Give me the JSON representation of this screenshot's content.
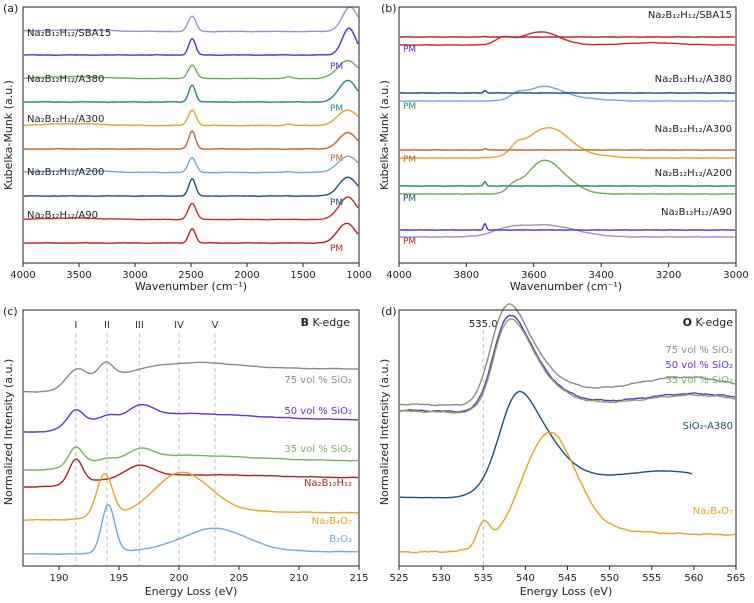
{
  "colors": {
    "SBA15": "#9c8fd6",
    "SBA15_PM": "#5b2bd6",
    "A380": "#6fae52",
    "A380_PM": "#1f8a7a",
    "A300": "#e6a41a",
    "A300_PM": "#c9622a",
    "A200": "#6fa8e0",
    "A200_PM": "#1a4e7e",
    "A90": "#d42626",
    "A90_PM": "#c41a1a",
    "gray": "#8a8a8a",
    "purple": "#6a2fd4",
    "green": "#79b15a",
    "darkred": "#b51e1e",
    "orange": "#e6a41a",
    "lightblue": "#6fa8e0",
    "navy": "#1a4e7e"
  },
  "chart_data": [
    {
      "panel": "(a)",
      "type": "line",
      "xlabel": "Wavenumber (cm⁻¹)",
      "ylabel": "Kubelka-Munk (a.u.)",
      "xlim": [
        4000,
        1000
      ],
      "xticks": [
        "4000",
        "3500",
        "3000",
        "2500",
        "2000",
        "1500",
        "1000"
      ],
      "series": [
        {
          "name": "Na₂B₁₂H₁₂/SBA15",
          "offset": 9,
          "color_key": "SBA15",
          "peaks": [
            [
              2490,
              0.85,
              35
            ],
            [
              1080,
              1.35,
              70
            ],
            [
              3550,
              0.08,
              300
            ]
          ]
        },
        {
          "name": "PM",
          "offset": 8,
          "color_key": "SBA15_PM",
          "peaks": [
            [
              2490,
              0.9,
              30
            ],
            [
              1090,
              1.5,
              60
            ]
          ]
        },
        {
          "name": "Na₂B₁₂H₁₂/A380",
          "offset": 7,
          "color_key": "A380",
          "peaks": [
            [
              2490,
              0.75,
              35
            ],
            [
              1100,
              1.0,
              90
            ],
            [
              3550,
              0.1,
              250
            ],
            [
              1630,
              0.08,
              30
            ]
          ]
        },
        {
          "name": "PM",
          "offset": 6,
          "color_key": "A380_PM",
          "peaks": [
            [
              2490,
              0.95,
              30
            ],
            [
              1100,
              1.2,
              80
            ]
          ]
        },
        {
          "name": "Na₂B₁₂H₁₂/A300",
          "offset": 5,
          "color_key": "A300",
          "peaks": [
            [
              2490,
              0.85,
              35
            ],
            [
              1100,
              0.85,
              90
            ],
            [
              3550,
              0.1,
              250
            ],
            [
              1630,
              0.08,
              30
            ]
          ]
        },
        {
          "name": "PM",
          "offset": 4,
          "color_key": "A300_PM",
          "peaks": [
            [
              2490,
              1.0,
              30
            ],
            [
              1100,
              0.9,
              80
            ]
          ]
        },
        {
          "name": "Na₂B₁₂H₁₂/A200",
          "offset": 3,
          "color_key": "A200",
          "peaks": [
            [
              2490,
              0.8,
              35
            ],
            [
              1100,
              0.9,
              90
            ],
            [
              3550,
              0.12,
              250
            ],
            [
              1630,
              0.06,
              30
            ]
          ]
        },
        {
          "name": "PM",
          "offset": 2,
          "color_key": "A200_PM",
          "peaks": [
            [
              2490,
              0.95,
              30
            ],
            [
              1100,
              1.05,
              80
            ]
          ]
        },
        {
          "name": "Na₂B₁₂H₁₂/A90",
          "offset": 1,
          "color_key": "A90",
          "peaks": [
            [
              2490,
              0.9,
              35
            ],
            [
              1100,
              1.25,
              80
            ],
            [
              3550,
              0.08,
              250
            ]
          ]
        },
        {
          "name": "PM",
          "offset": 0,
          "color_key": "A90_PM",
          "peaks": [
            [
              2490,
              0.8,
              30
            ],
            [
              1110,
              1.1,
              80
            ]
          ]
        }
      ]
    },
    {
      "panel": "(b)",
      "type": "line",
      "xlabel": "Wavenumber (cm⁻¹)",
      "ylabel": "Kubelka-Munk (a.u.)",
      "xlim": [
        4000,
        3000
      ],
      "xticks": [
        "4000",
        "3800",
        "3600",
        "3400",
        "3200",
        "3000"
      ],
      "series": [
        {
          "name": "Na₂B₁₂H₁₂/SBA15",
          "offset": 9,
          "color_key": "SBA15",
          "peaks": [
            [
              3570,
              0.55,
              90
            ],
            [
              3680,
              0.2,
              40
            ]
          ]
        },
        {
          "name": "PM",
          "offset": 8,
          "color_key": "SBA15_PM",
          "peaks": [
            [
              3745,
              0.3,
              4
            ]
          ]
        },
        {
          "name": "Na₂B₁₂H₁₂/A380",
          "offset": 7,
          "color_key": "A380",
          "peaks": [
            [
              3580,
              1.2,
              45
            ],
            [
              3520,
              0.6,
              50
            ],
            [
              3660,
              0.3,
              18
            ]
          ]
        },
        {
          "name": "PM",
          "offset": 6,
          "color_key": "A380_PM",
          "peaks": [
            [
              3745,
              0.2,
              4
            ]
          ]
        },
        {
          "name": "Na₂B₁₂H₁₂/A300",
          "offset": 5,
          "color_key": "A300",
          "peaks": [
            [
              3580,
              1.0,
              55
            ],
            [
              3520,
              0.6,
              50
            ],
            [
              3650,
              0.3,
              18
            ],
            [
              3420,
              0.1,
              60
            ]
          ]
        },
        {
          "name": "PM",
          "offset": 4,
          "color_key": "A300_PM",
          "peaks": [
            [
              3745,
              0.06,
              4
            ]
          ]
        },
        {
          "name": "Na₂B₁₂H₁₂/A200",
          "offset": 3,
          "color_key": "A200",
          "peaks": [
            [
              3570,
              0.65,
              55
            ],
            [
              3650,
              0.2,
              20
            ],
            [
              3450,
              0.1,
              60
            ]
          ]
        },
        {
          "name": "PM",
          "offset": 2,
          "color_key": "A200_PM",
          "peaks": [
            [
              3745,
              0.12,
              4
            ]
          ]
        },
        {
          "name": "Na₂B₁₂H₁₂/A90",
          "offset": 1,
          "color_key": "A90",
          "peaks": [
            [
              3580,
              0.6,
              55
            ],
            [
              3690,
              0.3,
              25
            ],
            [
              3250,
              0.1,
              80
            ]
          ]
        },
        {
          "name": "PM",
          "offset": 0,
          "color_key": "A90_PM",
          "peaks": [
            [
              3745,
              0.02,
              4
            ]
          ]
        }
      ]
    },
    {
      "panel": "(c)",
      "type": "line",
      "xlabel": "Energy Loss (eV)",
      "ylabel": "Normalized Intensity (a.u.)",
      "xlim": [
        187,
        215
      ],
      "xticks": [
        "190",
        "195",
        "200",
        "205",
        "210",
        "215"
      ],
      "edge_element": "B",
      "edge_suffix": " K-edge",
      "markers": [
        {
          "label": "I",
          "x": 191.4
        },
        {
          "label": "II",
          "x": 194.0
        },
        {
          "label": "III",
          "x": 196.7
        },
        {
          "label": "IV",
          "x": 200.0
        },
        {
          "label": "V",
          "x": 203.0
        }
      ],
      "series": [
        {
          "name": "75 vol % SiO₂",
          "color_key": "gray"
        },
        {
          "name": "50 vol % SiO₂",
          "color_key": "purple"
        },
        {
          "name": "35 vol % SiO₂",
          "color_key": "green"
        },
        {
          "name": "Na₂B₁₂H₁₂",
          "color_key": "darkred"
        },
        {
          "name": "Na₂B₄O₇",
          "color_key": "orange"
        },
        {
          "name": "B₂O₃",
          "color_key": "lightblue"
        }
      ]
    },
    {
      "panel": "(d)",
      "type": "line",
      "xlabel": "Energy Loss (eV)",
      "ylabel": "Normalized Intensity (a.u.)",
      "xlim": [
        525,
        565
      ],
      "xticks": [
        "525",
        "530",
        "535",
        "540",
        "545",
        "550",
        "555",
        "560",
        "565"
      ],
      "edge_element": "O",
      "edge_suffix": " K-edge",
      "marker": {
        "label": "535.0",
        "x": 535.0
      },
      "series": [
        {
          "name": "75 vol % SiO₂",
          "color_key": "gray"
        },
        {
          "name": "50 vol % SiO₂",
          "color_key": "purple"
        },
        {
          "name": "35 vol % SiO₂",
          "color_key": "green"
        },
        {
          "name": "SiO₂-A380",
          "color_key": "navy"
        },
        {
          "name": "Na₂B₄O₇",
          "color_key": "orange"
        }
      ]
    }
  ]
}
